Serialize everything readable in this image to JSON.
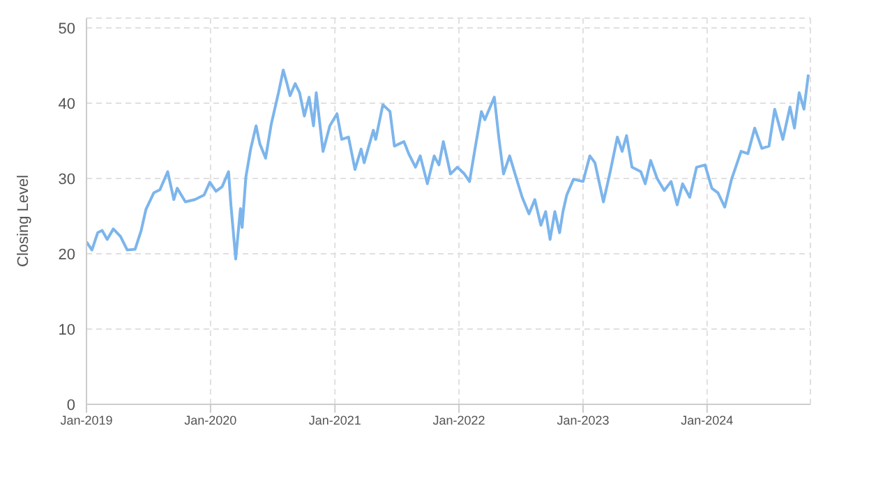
{
  "chart_data": {
    "type": "line",
    "ylabel": "Closing Level",
    "color": "#7cb5ec",
    "grid": true,
    "marker": "none",
    "line_style": "solid",
    "ylim": [
      0,
      51.3
    ],
    "yticks": [
      0,
      10,
      20,
      30,
      40,
      50
    ],
    "xlim": [
      "2019-01-01",
      "2024-10-31"
    ],
    "xticks": [
      {
        "value": "2019-01-01",
        "label": "Jan-2019"
      },
      {
        "value": "2020-01-01",
        "label": "Jan-2020"
      },
      {
        "value": "2021-01-01",
        "label": "Jan-2021"
      },
      {
        "value": "2022-01-01",
        "label": "Jan-2022"
      },
      {
        "value": "2023-01-01",
        "label": "Jan-2023"
      },
      {
        "value": "2024-01-01",
        "label": "Jan-2024"
      }
    ],
    "x": [
      "2019-01-01",
      "2019-01-17",
      "2019-02-03",
      "2019-02-16",
      "2019-03-03",
      "2019-03-21",
      "2019-04-11",
      "2019-05-01",
      "2019-05-24",
      "2019-06-11",
      "2019-06-25",
      "2019-07-18",
      "2019-08-05",
      "2019-08-28",
      "2019-09-15",
      "2019-09-25",
      "2019-10-19",
      "2019-11-16",
      "2019-12-13",
      "2019-12-30",
      "2020-01-17",
      "2020-02-04",
      "2020-02-23",
      "2020-03-01",
      "2020-03-15",
      "2020-03-29",
      "2020-04-03",
      "2020-04-14",
      "2020-04-28",
      "2020-05-14",
      "2020-05-25",
      "2020-06-11",
      "2020-06-28",
      "2020-07-19",
      "2020-08-02",
      "2020-08-13",
      "2020-08-22",
      "2020-09-06",
      "2020-09-19",
      "2020-10-03",
      "2020-10-17",
      "2020-10-30",
      "2020-11-07",
      "2020-11-27",
      "2020-12-17",
      "2021-01-07",
      "2021-01-21",
      "2021-02-10",
      "2021-03-01",
      "2021-03-19",
      "2021-03-28",
      "2021-04-24",
      "2021-05-01",
      "2021-05-22",
      "2021-06-12",
      "2021-06-25",
      "2021-07-23",
      "2021-08-06",
      "2021-08-26",
      "2021-09-09",
      "2021-09-30",
      "2021-10-20",
      "2021-11-03",
      "2021-11-16",
      "2021-12-07",
      "2021-12-27",
      "2022-01-17",
      "2022-02-01",
      "2022-02-17",
      "2022-03-08",
      "2022-03-18",
      "2022-04-15",
      "2022-04-28",
      "2022-05-12",
      "2022-05-30",
      "2022-06-15",
      "2022-07-06",
      "2022-07-26",
      "2022-08-12",
      "2022-08-30",
      "2022-09-13",
      "2022-09-26",
      "2022-10-10",
      "2022-10-24",
      "2022-11-03",
      "2022-11-14",
      "2022-12-04",
      "2023-01-01",
      "2023-01-21",
      "2023-02-05",
      "2023-03-02",
      "2023-03-22",
      "2023-04-12",
      "2023-04-26",
      "2023-05-09",
      "2023-05-25",
      "2023-06-20",
      "2023-07-03",
      "2023-07-19",
      "2023-08-07",
      "2023-08-28",
      "2023-09-17",
      "2023-10-05",
      "2023-10-21",
      "2023-11-11",
      "2023-12-01",
      "2023-12-26",
      "2024-01-15",
      "2024-02-02",
      "2024-02-22",
      "2024-03-13",
      "2024-04-10",
      "2024-04-30",
      "2024-05-20",
      "2024-06-10",
      "2024-07-01",
      "2024-07-18",
      "2024-08-11",
      "2024-09-01",
      "2024-09-14",
      "2024-09-28",
      "2024-10-12",
      "2024-10-25"
    ],
    "values": [
      21.6,
      20.5,
      22.8,
      23.1,
      21.9,
      23.3,
      22.3,
      20.5,
      20.6,
      23.1,
      25.9,
      28.1,
      28.5,
      30.9,
      27.2,
      28.7,
      26.9,
      27.2,
      27.8,
      29.5,
      28.3,
      28.9,
      30.9,
      26.5,
      19.3,
      26.0,
      23.5,
      30.2,
      33.9,
      37.0,
      34.6,
      32.7,
      37.3,
      41.4,
      44.4,
      42.6,
      41.0,
      42.6,
      41.4,
      38.3,
      40.8,
      37.0,
      41.4,
      33.6,
      37.0,
      38.6,
      35.2,
      35.5,
      31.2,
      33.9,
      32.1,
      36.4,
      35.2,
      39.8,
      38.9,
      34.3,
      34.9,
      33.3,
      31.5,
      33.0,
      29.3,
      33.0,
      31.8,
      34.9,
      30.6,
      31.5,
      30.6,
      29.6,
      33.9,
      38.9,
      37.8,
      40.8,
      35.5,
      30.6,
      33.0,
      30.6,
      27.5,
      25.3,
      27.2,
      23.8,
      25.6,
      21.9,
      25.6,
      22.8,
      25.6,
      27.8,
      29.9,
      29.6,
      33.0,
      32.1,
      26.9,
      30.9,
      35.5,
      33.6,
      35.7,
      31.5,
      30.9,
      29.3,
      32.4,
      30.0,
      28.4,
      29.6,
      26.5,
      29.3,
      27.5,
      31.5,
      31.8,
      28.7,
      28.1,
      26.2,
      29.9,
      33.6,
      33.3,
      36.7,
      34.0,
      34.3,
      39.2,
      35.2,
      39.5,
      36.7,
      41.4,
      39.2,
      43.8
    ]
  }
}
